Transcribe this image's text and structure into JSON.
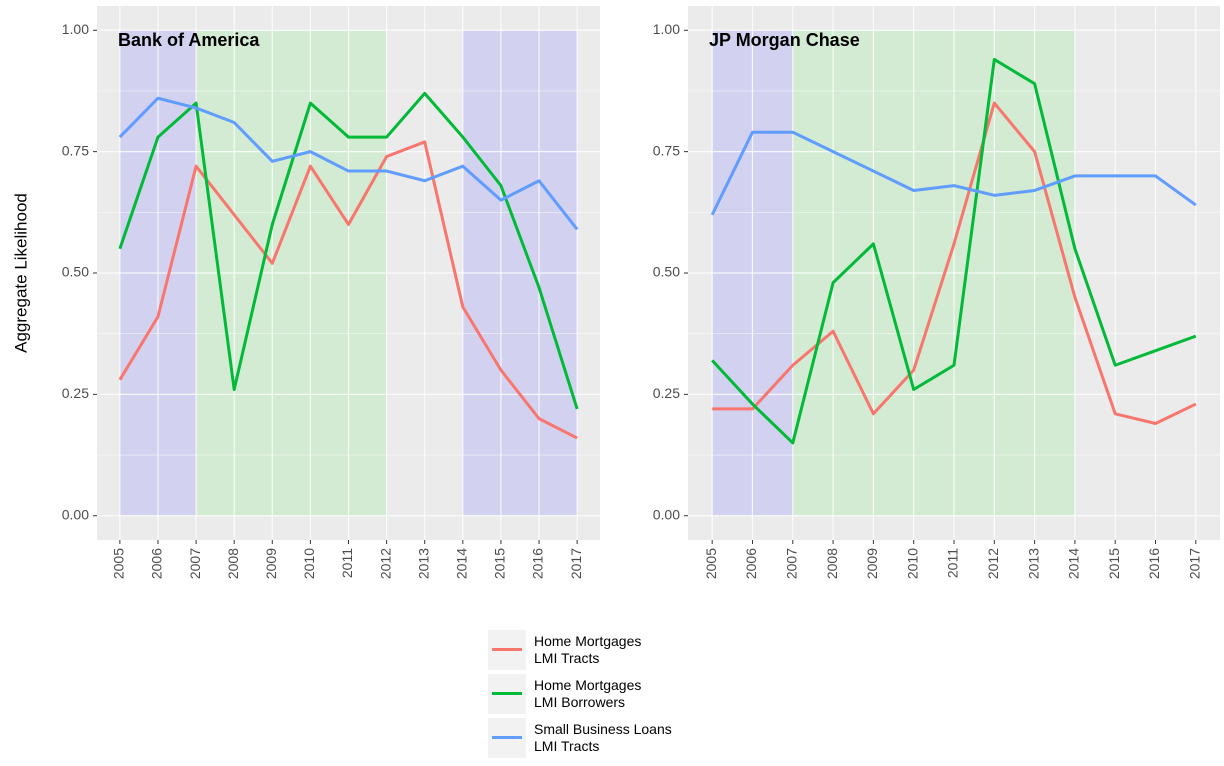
{
  "chart_data": [
    {
      "type": "line",
      "title": "Bank of America",
      "y_label": "Aggregate Likelihood",
      "x": [
        2005,
        2006,
        2007,
        2008,
        2009,
        2010,
        2011,
        2012,
        2013,
        2014,
        2015,
        2016,
        2017
      ],
      "xlim": [
        2004.4,
        2017.6
      ],
      "xticks": [
        2005,
        2006,
        2007,
        2008,
        2009,
        2010,
        2011,
        2012,
        2013,
        2014,
        2015,
        2016,
        2017
      ],
      "ylim": [
        -0.05,
        1.05
      ],
      "yticks": [
        {
          "value": 0,
          "label": "0.00"
        },
        {
          "value": 0.25,
          "label": "0.25"
        },
        {
          "value": 0.5,
          "label": "0.50"
        },
        {
          "value": 0.75,
          "label": "0.75"
        },
        {
          "value": 1,
          "label": "1.00"
        }
      ],
      "grid": true,
      "shaded_regions": [
        {
          "start": 2005,
          "end": 2007,
          "low": 0,
          "high": 1,
          "color": "#d2d2f0"
        },
        {
          "start": 2007,
          "end": 2012,
          "low": 0,
          "high": 1,
          "color": "#d3ebd3"
        },
        {
          "start": 2014,
          "end": 2017,
          "low": 0,
          "high": 1,
          "color": "#d2d2f0"
        }
      ],
      "series": [
        {
          "name": "Home Mortgages\nLMI Tracts",
          "color": "#f8766d",
          "values": [
            0.28,
            0.41,
            0.72,
            0.62,
            0.52,
            0.72,
            0.6,
            0.74,
            0.77,
            0.43,
            0.3,
            0.2,
            0.16
          ]
        },
        {
          "name": "Home Mortgages\nLMI Borrowers",
          "color": "#00ba38",
          "values": [
            0.55,
            0.78,
            0.85,
            0.26,
            0.6,
            0.85,
            0.78,
            0.78,
            0.87,
            0.78,
            0.68,
            0.47,
            0.22
          ]
        },
        {
          "name": "Small Business Loans\nLMI Tracts",
          "color": "#619cff",
          "values": [
            0.78,
            0.86,
            0.84,
            0.81,
            0.73,
            0.75,
            0.71,
            0.71,
            0.69,
            0.72,
            0.65,
            0.69,
            0.59
          ]
        }
      ]
    },
    {
      "type": "line",
      "title": "JP Morgan Chase",
      "x": [
        2005,
        2006,
        2007,
        2008,
        2009,
        2010,
        2011,
        2012,
        2013,
        2014,
        2015,
        2016,
        2017
      ],
      "xlim": [
        2004.4,
        2017.6
      ],
      "xticks": [
        2005,
        2006,
        2007,
        2008,
        2009,
        2010,
        2011,
        2012,
        2013,
        2014,
        2015,
        2016,
        2017
      ],
      "ylim": [
        -0.05,
        1.05
      ],
      "yticks": [
        {
          "value": 0,
          "label": "0.00"
        },
        {
          "value": 0.25,
          "label": "0.25"
        },
        {
          "value": 0.5,
          "label": "0.50"
        },
        {
          "value": 0.75,
          "label": "0.75"
        },
        {
          "value": 1,
          "label": "1.00"
        }
      ],
      "grid": true,
      "shaded_regions": [
        {
          "start": 2005,
          "end": 2007,
          "low": 0,
          "high": 1,
          "color": "#d2d2f0"
        },
        {
          "start": 2007,
          "end": 2014,
          "low": 0,
          "high": 1,
          "color": "#d3ebd3"
        }
      ],
      "series": [
        {
          "color": "#f8766d",
          "values": [
            0.22,
            0.22,
            0.31,
            0.38,
            0.21,
            0.3,
            0.56,
            0.85,
            0.75,
            0.45,
            0.21,
            0.19,
            0.23
          ]
        },
        {
          "color": "#00ba38",
          "values": [
            0.32,
            0.23,
            0.15,
            0.48,
            0.56,
            0.26,
            0.31,
            0.94,
            0.89,
            0.55,
            0.31,
            0.34,
            0.37
          ]
        },
        {
          "color": "#619cff",
          "values": [
            0.62,
            0.79,
            0.79,
            0.75,
            0.71,
            0.67,
            0.68,
            0.66,
            0.67,
            0.7,
            0.7,
            0.7,
            0.64
          ]
        }
      ]
    }
  ]
}
